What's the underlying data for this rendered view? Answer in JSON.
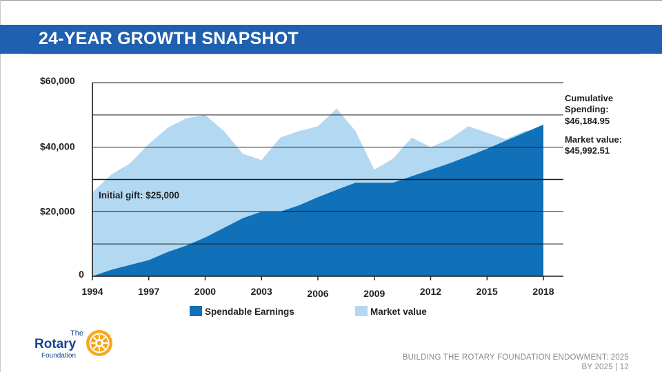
{
  "slide": {
    "title": "24-YEAR GROWTH SNAPSHOT",
    "footer_line1": "BUILDING THE ROTARY FOUNDATION ENDOWMENT: 2025",
    "footer_line2": "BY 2025 | 12"
  },
  "logo": {
    "the": "The",
    "rotary": "Rotary",
    "foundation": "Foundation"
  },
  "colors": {
    "title_bar": "#2060b0",
    "spendable": "#1070b8",
    "market": "#b3d9f2",
    "logo_blue": "#17458f",
    "logo_gold": "#f7a81b"
  },
  "chart_data": {
    "type": "area",
    "title": "",
    "xlabel": "",
    "ylabel": "",
    "ylim": [
      0,
      60000
    ],
    "xlim": [
      1994,
      2018
    ],
    "y_ticks": [
      {
        "value": 0,
        "label": "0"
      },
      {
        "value": 20000,
        "label": "$20,000"
      },
      {
        "value": 40000,
        "label": "$40,000"
      },
      {
        "value": 60000,
        "label": "$60,000"
      }
    ],
    "gridlines": [
      10000,
      20000,
      30000,
      40000,
      50000,
      60000
    ],
    "x_ticks": [
      {
        "value": 1994,
        "label": "1994"
      },
      {
        "value": 1997,
        "label": "1997"
      },
      {
        "value": 2000,
        "label": "2000"
      },
      {
        "value": 2003,
        "label": "2003"
      },
      {
        "value": 2006,
        "label": "2006"
      },
      {
        "value": 2009,
        "label": "2009"
      },
      {
        "value": 2012,
        "label": "2012"
      },
      {
        "value": 2015,
        "label": "2015"
      },
      {
        "value": 2018,
        "label": "2018"
      }
    ],
    "series": [
      {
        "name": "Market value",
        "x": [
          1994,
          1995,
          1996,
          1997,
          1998,
          1999,
          2000,
          2001,
          2002,
          2003,
          2004,
          2005,
          2006,
          2007,
          2008,
          2009,
          2010,
          2011,
          2012,
          2013,
          2014,
          2015,
          2016,
          2017,
          2018
        ],
        "values": [
          26000,
          31500,
          35000,
          41000,
          46000,
          49000,
          50000,
          45000,
          38000,
          36000,
          43000,
          45000,
          46500,
          52000,
          45000,
          33000,
          36500,
          43000,
          40000,
          42500,
          46500,
          44500,
          42500,
          45000,
          46000
        ]
      },
      {
        "name": "Spendable Earnings",
        "x": [
          1994,
          1995,
          1996,
          1997,
          1998,
          1999,
          2000,
          2001,
          2002,
          2003,
          2004,
          2005,
          2006,
          2007,
          2008,
          2009,
          2010,
          2011,
          2012,
          2013,
          2014,
          2015,
          2016,
          2017,
          2018
        ],
        "values": [
          0,
          2000,
          3500,
          5000,
          7500,
          9500,
          12000,
          15000,
          18000,
          20000,
          20000,
          22000,
          24500,
          26800,
          29000,
          29000,
          29000,
          31000,
          33000,
          35000,
          37200,
          39500,
          42000,
          44500,
          47000
        ]
      }
    ],
    "legend": [
      {
        "name": "Spendable Earnings"
      },
      {
        "name": "Market value"
      }
    ],
    "legend_position": "bottom",
    "annotations": {
      "initial_gift": "Initial gift: $25,000",
      "cumulative_label_1": "Cumulative",
      "cumulative_label_2": "Spending:",
      "cumulative_value": "$46,184.95",
      "market_label": "Market value:",
      "market_value": "$45,992.51"
    }
  }
}
